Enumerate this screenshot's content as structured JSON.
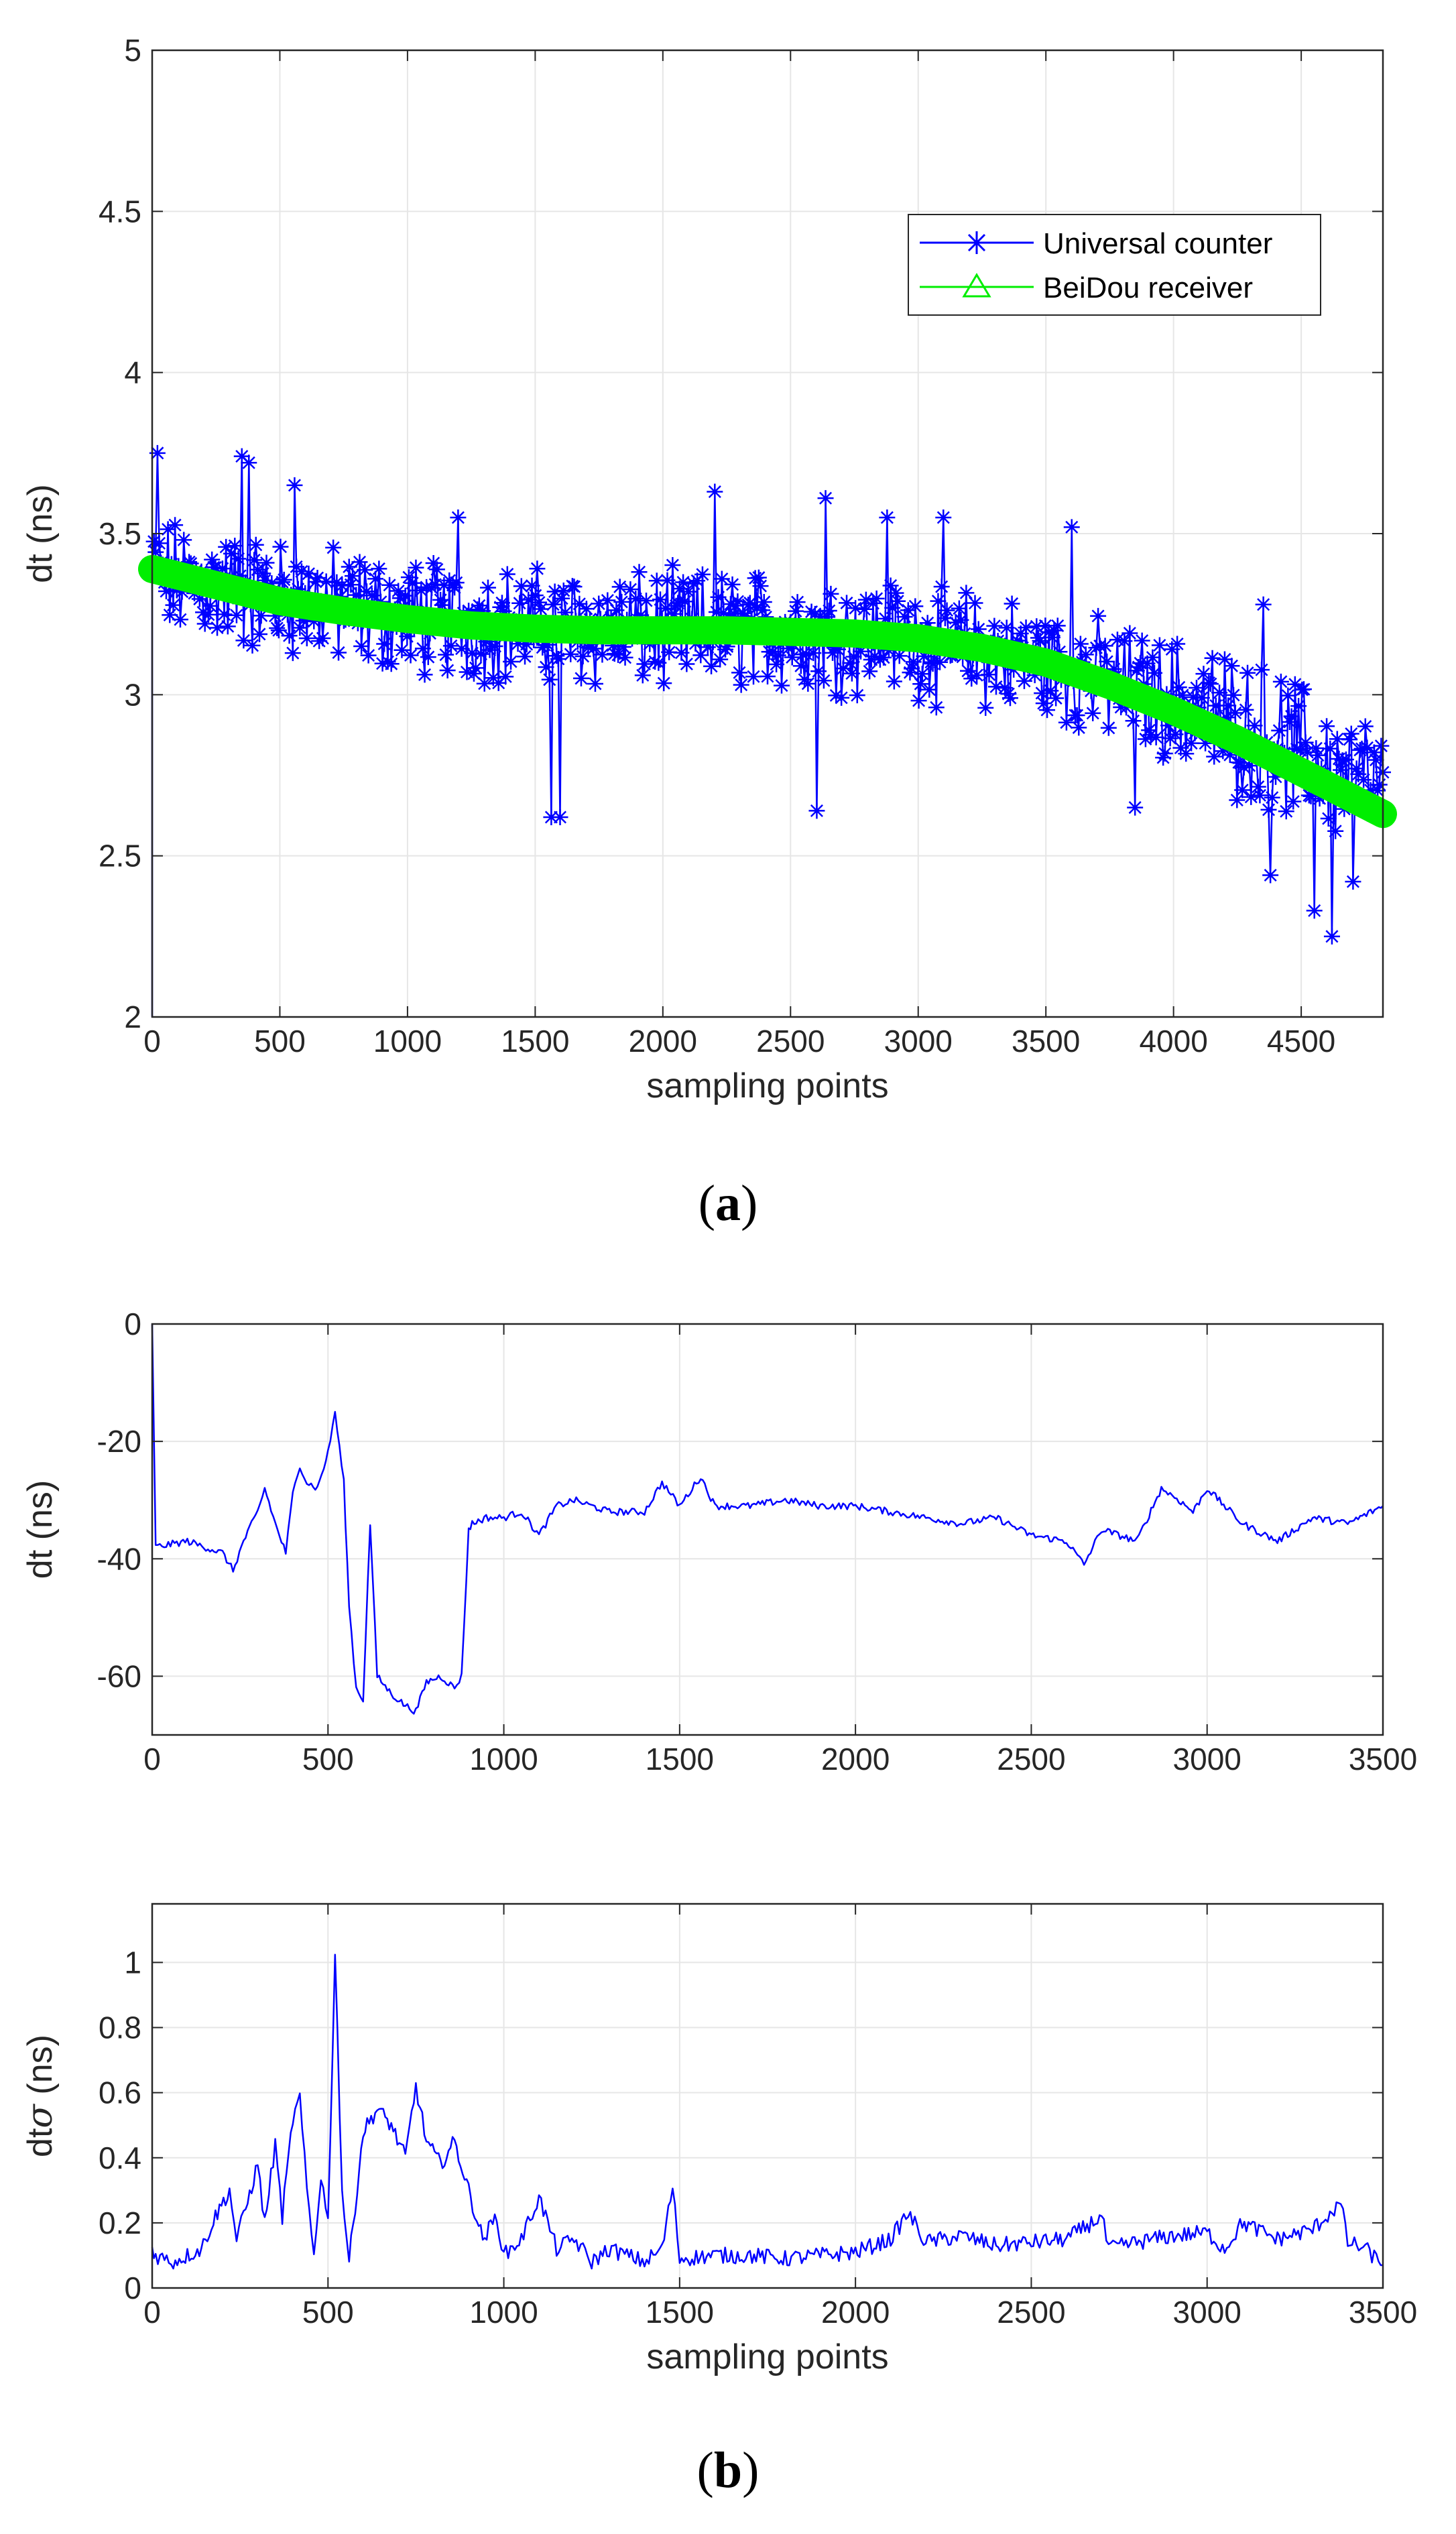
{
  "chart_data": [
    {
      "type": "line",
      "panel_label": "a",
      "title": "",
      "xlabel": "sampling points",
      "ylabel": "dt (ns)",
      "xlim": [
        0,
        4820
      ],
      "ylim": [
        2,
        5
      ],
      "xticks": [
        0,
        500,
        1000,
        1500,
        2000,
        2500,
        3000,
        3500,
        4000,
        4500
      ],
      "yticks": [
        2,
        2.5,
        3,
        3.5,
        4,
        4.5,
        5
      ],
      "grid": true,
      "legend_position": "top-right",
      "series": [
        {
          "name": "Universal counter",
          "color": "#0000ff",
          "marker": "asterisk",
          "trend": {
            "x": [
              0,
              500,
              1000,
              1500,
              2000,
              2500,
              3000,
              3500,
              4000,
              4500,
              4820
            ],
            "y": [
              3.37,
              3.3,
              3.24,
              3.21,
              3.2,
              3.2,
              3.17,
              3.1,
              2.98,
              2.82,
              2.7
            ]
          },
          "noise_amplitude": 0.28,
          "outliers": [
            [
              20,
              3.75
            ],
            [
              350,
              3.74
            ],
            [
              380,
              3.72
            ],
            [
              560,
              3.65
            ],
            [
              1200,
              3.55
            ],
            [
              1560,
              2.62
            ],
            [
              1600,
              2.62
            ],
            [
              2200,
              3.63
            ],
            [
              2600,
              2.64
            ],
            [
              2640,
              3.61
            ],
            [
              2880,
              3.55
            ],
            [
              3100,
              3.55
            ],
            [
              3600,
              3.52
            ],
            [
              3850,
              2.65
            ],
            [
              4100,
              2.96
            ],
            [
              4350,
              3.28
            ],
            [
              4380,
              2.44
            ],
            [
              4550,
              2.33
            ],
            [
              4620,
              2.25
            ],
            [
              4700,
              2.42
            ]
          ]
        },
        {
          "name": "BeiDou receiver",
          "color": "#00ee00",
          "marker": "triangle",
          "x": [
            0,
            250,
            500,
            750,
            1000,
            1250,
            1500,
            1750,
            2000,
            2250,
            2500,
            2750,
            3000,
            3250,
            3500,
            3750,
            4000,
            4250,
            4500,
            4820
          ],
          "y": [
            3.39,
            3.34,
            3.29,
            3.26,
            3.235,
            3.215,
            3.205,
            3.2,
            3.2,
            3.2,
            3.195,
            3.19,
            3.175,
            3.145,
            3.1,
            3.03,
            2.95,
            2.86,
            2.76,
            2.63
          ]
        }
      ]
    },
    {
      "type": "line",
      "panel_label": "b",
      "title": "",
      "xlabel": "",
      "ylabel": "dt (ns)",
      "xlim": [
        0,
        3500
      ],
      "ylim": [
        -70,
        0
      ],
      "xticks": [
        0,
        500,
        1000,
        1500,
        2000,
        2500,
        3000,
        3500
      ],
      "yticks": [
        -60,
        -40,
        -20,
        0
      ],
      "grid": true,
      "series": [
        {
          "name": "dt",
          "color": "#0000ff",
          "x": [
            0,
            10,
            100,
            200,
            230,
            260,
            300,
            320,
            350,
            380,
            400,
            420,
            440,
            470,
            500,
            520,
            545,
            560,
            580,
            600,
            620,
            640,
            680,
            720,
            750,
            780,
            820,
            860,
            880,
            900,
            910,
            950,
            1000,
            1050,
            1100,
            1150,
            1200,
            1300,
            1400,
            1450,
            1500,
            1560,
            1600,
            1700,
            1800,
            1900,
            2000,
            2100,
            2200,
            2300,
            2400,
            2500,
            2600,
            2650,
            2700,
            2800,
            2870,
            2920,
            2960,
            3000,
            3100,
            3200,
            3300,
            3400,
            3500
          ],
          "y": [
            0,
            -38,
            -37,
            -39,
            -42,
            -37,
            -32,
            -28,
            -34,
            -39,
            -29,
            -24,
            -27,
            -28,
            -22,
            -15,
            -27,
            -48,
            -62,
            -64,
            -34,
            -60,
            -63,
            -65,
            -66,
            -61,
            -60,
            -62,
            -60,
            -35,
            -34,
            -33,
            -33,
            -32,
            -36,
            -31,
            -30,
            -32,
            -32,
            -27,
            -31,
            -26,
            -31,
            -31,
            -30,
            -31,
            -31,
            -32,
            -33,
            -34,
            -33,
            -36,
            -37,
            -41,
            -35,
            -37,
            -28,
            -30,
            -32,
            -28,
            -34,
            -37,
            -33,
            -34,
            -31
          ]
        }
      ]
    },
    {
      "type": "line",
      "panel_label": "",
      "title": "",
      "xlabel": "sampling points",
      "ylabel": "dtσ (ns)",
      "ylabel_text": "dt",
      "ylabel_symbol": "σ",
      "ylabel_unit": "(ns)",
      "xlim": [
        0,
        3500
      ],
      "ylim": [
        0,
        1.18
      ],
      "xticks": [
        0,
        500,
        1000,
        1500,
        2000,
        2500,
        3000,
        3500
      ],
      "yticks": [
        0,
        0.2,
        0.4,
        0.6,
        0.8,
        1
      ],
      "grid": true,
      "series": [
        {
          "name": "dtσ",
          "color": "#0000ff",
          "x": [
            0,
            10,
            60,
            100,
            140,
            180,
            220,
            240,
            260,
            300,
            320,
            350,
            370,
            400,
            420,
            440,
            460,
            480,
            500,
            520,
            540,
            560,
            600,
            640,
            680,
            720,
            750,
            780,
            820,
            860,
            900,
            940,
            980,
            1000,
            1050,
            1100,
            1150,
            1200,
            1250,
            1300,
            1350,
            1400,
            1450,
            1480,
            1500,
            1600,
            1700,
            1800,
            1900,
            2000,
            2100,
            2150,
            2200,
            2300,
            2400,
            2500,
            2600,
            2700,
            2720,
            2800,
            2900,
            3000,
            3050,
            3100,
            3200,
            3300,
            3380,
            3400,
            3450,
            3500
          ],
          "y": [
            0.12,
            0.1,
            0.08,
            0.1,
            0.12,
            0.22,
            0.3,
            0.15,
            0.22,
            0.38,
            0.2,
            0.44,
            0.22,
            0.52,
            0.58,
            0.3,
            0.1,
            0.35,
            0.2,
            1.03,
            0.3,
            0.08,
            0.48,
            0.55,
            0.5,
            0.4,
            0.62,
            0.45,
            0.38,
            0.45,
            0.3,
            0.15,
            0.22,
            0.1,
            0.15,
            0.28,
            0.12,
            0.15,
            0.08,
            0.12,
            0.1,
            0.08,
            0.12,
            0.31,
            0.09,
            0.1,
            0.1,
            0.09,
            0.1,
            0.11,
            0.15,
            0.23,
            0.14,
            0.16,
            0.13,
            0.14,
            0.15,
            0.22,
            0.12,
            0.14,
            0.16,
            0.17,
            0.12,
            0.2,
            0.15,
            0.18,
            0.26,
            0.14,
            0.12,
            0.07
          ]
        }
      ]
    }
  ],
  "legend": {
    "entries": [
      "Universal counter",
      "BeiDou receiver"
    ]
  },
  "colors": {
    "blue": "#0000ff",
    "green": "#00ee00",
    "grid": "#e6e6e6",
    "axis": "#262626"
  }
}
